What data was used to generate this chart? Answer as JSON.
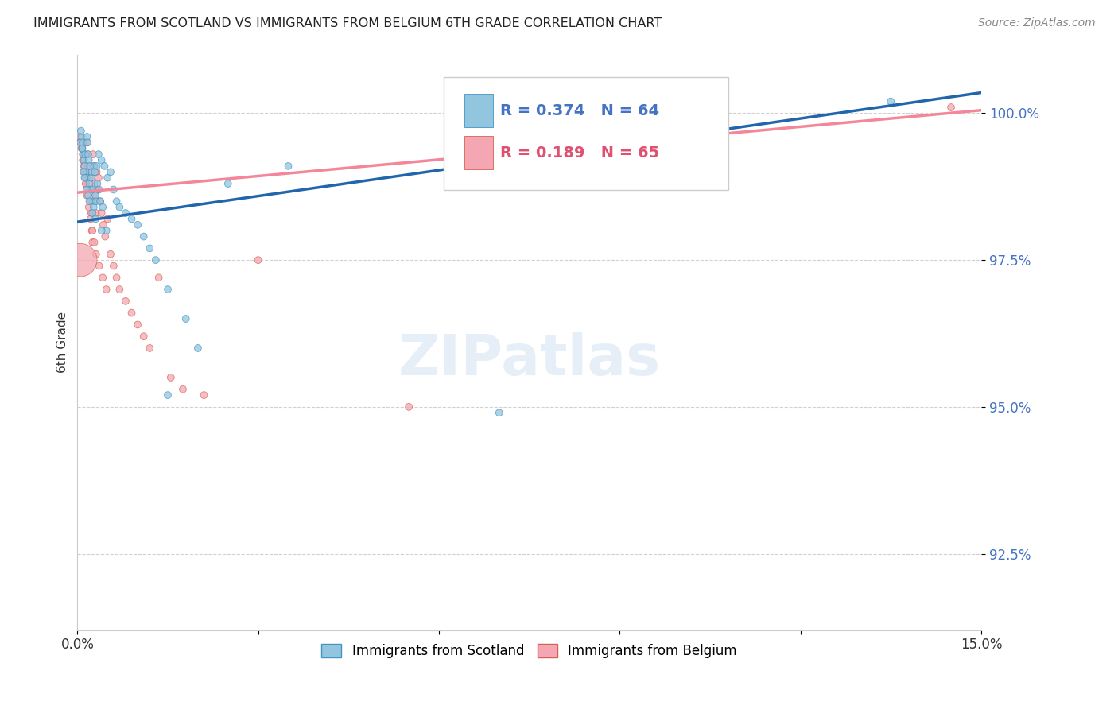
{
  "title": "IMMIGRANTS FROM SCOTLAND VS IMMIGRANTS FROM BELGIUM 6TH GRADE CORRELATION CHART",
  "source": "Source: ZipAtlas.com",
  "ylabel": "6th Grade",
  "yticks": [
    92.5,
    95.0,
    97.5,
    100.0
  ],
  "ytick_labels": [
    "92.5%",
    "95.0%",
    "97.5%",
    "100.0%"
  ],
  "xmin": 0.0,
  "xmax": 15.0,
  "ymin": 91.2,
  "ymax": 101.0,
  "scotland_color": "#92c5de",
  "scotland_edge": "#4393c3",
  "belgium_color": "#f4a7b2",
  "belgium_edge": "#d6604d",
  "scotland_R": 0.374,
  "scotland_N": 64,
  "belgium_R": 0.189,
  "belgium_N": 65,
  "scotland_line_color": "#2166ac",
  "belgium_line_color": "#f4869a",
  "legend_label_scotland": "Immigrants from Scotland",
  "legend_label_belgium": "Immigrants from Belgium",
  "scotland_x": [
    0.05,
    0.07,
    0.08,
    0.09,
    0.1,
    0.11,
    0.12,
    0.13,
    0.14,
    0.15,
    0.16,
    0.17,
    0.18,
    0.19,
    0.2,
    0.21,
    0.22,
    0.23,
    0.24,
    0.25,
    0.26,
    0.27,
    0.28,
    0.29,
    0.3,
    0.31,
    0.32,
    0.33,
    0.35,
    0.36,
    0.38,
    0.4,
    0.42,
    0.45,
    0.48,
    0.5,
    0.55,
    0.6,
    0.65,
    0.7,
    0.8,
    0.9,
    1.0,
    1.1,
    1.2,
    1.3,
    1.5,
    1.8,
    2.0,
    2.5,
    0.06,
    0.08,
    0.1,
    0.12,
    0.15,
    0.18,
    0.2,
    0.25,
    0.3,
    0.4,
    1.5,
    3.5,
    7.0,
    13.5
  ],
  "scotland_y": [
    99.5,
    99.6,
    99.4,
    99.5,
    99.3,
    99.2,
    99.1,
    99.3,
    99.0,
    98.9,
    99.6,
    99.5,
    99.3,
    99.2,
    98.8,
    99.1,
    98.7,
    98.9,
    99.0,
    98.7,
    98.5,
    98.4,
    99.1,
    99.0,
    98.6,
    98.5,
    99.1,
    98.8,
    99.3,
    98.7,
    98.5,
    99.2,
    98.4,
    99.1,
    98.0,
    98.9,
    99.0,
    98.7,
    98.5,
    98.4,
    98.3,
    98.2,
    98.1,
    97.9,
    97.7,
    97.5,
    97.0,
    96.5,
    96.0,
    98.8,
    99.7,
    99.4,
    99.0,
    98.9,
    98.7,
    98.6,
    98.5,
    98.3,
    98.2,
    98.0,
    95.2,
    99.1,
    94.9,
    100.2
  ],
  "scotland_size": [
    40,
    40,
    40,
    40,
    40,
    40,
    40,
    40,
    40,
    40,
    40,
    40,
    40,
    40,
    40,
    40,
    40,
    40,
    40,
    40,
    40,
    40,
    40,
    40,
    40,
    40,
    40,
    40,
    40,
    40,
    40,
    40,
    40,
    40,
    40,
    40,
    40,
    40,
    40,
    40,
    40,
    40,
    40,
    40,
    40,
    40,
    40,
    40,
    40,
    40,
    40,
    40,
    40,
    40,
    40,
    40,
    40,
    40,
    40,
    40,
    40,
    40,
    40,
    40
  ],
  "belgium_x": [
    0.04,
    0.06,
    0.08,
    0.09,
    0.1,
    0.11,
    0.12,
    0.13,
    0.14,
    0.15,
    0.16,
    0.17,
    0.18,
    0.19,
    0.2,
    0.21,
    0.22,
    0.23,
    0.24,
    0.25,
    0.26,
    0.27,
    0.28,
    0.29,
    0.3,
    0.31,
    0.32,
    0.33,
    0.35,
    0.38,
    0.4,
    0.43,
    0.46,
    0.5,
    0.55,
    0.6,
    0.65,
    0.7,
    0.8,
    0.9,
    1.0,
    1.1,
    1.2,
    1.35,
    1.55,
    1.75,
    2.1,
    0.07,
    0.09,
    0.11,
    0.14,
    0.16,
    0.19,
    0.22,
    0.25,
    0.28,
    0.31,
    0.36,
    0.42,
    0.48,
    0.05,
    3.0,
    5.5,
    14.5,
    0.05
  ],
  "belgium_y": [
    99.6,
    99.5,
    99.4,
    99.3,
    99.2,
    99.1,
    99.0,
    98.9,
    98.8,
    98.7,
    99.5,
    99.3,
    99.1,
    99.0,
    98.9,
    98.7,
    98.5,
    98.3,
    98.0,
    97.8,
    99.3,
    99.1,
    98.8,
    98.5,
    98.6,
    98.3,
    99.0,
    98.7,
    98.9,
    98.5,
    98.3,
    98.1,
    97.9,
    98.2,
    97.6,
    97.4,
    97.2,
    97.0,
    96.8,
    96.6,
    96.4,
    96.2,
    96.0,
    97.2,
    95.5,
    95.3,
    95.2,
    99.4,
    99.2,
    99.0,
    98.8,
    98.6,
    98.4,
    98.2,
    98.0,
    97.8,
    97.6,
    97.4,
    97.2,
    97.0,
    99.5,
    97.5,
    95.0,
    100.1,
    97.5
  ],
  "belgium_size": [
    40,
    40,
    40,
    40,
    40,
    40,
    40,
    40,
    40,
    40,
    40,
    40,
    40,
    40,
    40,
    40,
    40,
    40,
    40,
    40,
    40,
    40,
    40,
    40,
    40,
    40,
    40,
    40,
    40,
    40,
    40,
    40,
    40,
    40,
    40,
    40,
    40,
    40,
    40,
    40,
    40,
    40,
    40,
    40,
    40,
    40,
    40,
    40,
    40,
    40,
    40,
    40,
    40,
    40,
    40,
    40,
    40,
    40,
    40,
    40,
    40,
    40,
    40,
    40,
    900
  ],
  "scot_line_x0": 0.0,
  "scot_line_y0": 98.15,
  "scot_line_x1": 15.0,
  "scot_line_y1": 100.35,
  "belg_line_x0": 0.0,
  "belg_line_y0": 98.65,
  "belg_line_x1": 15.0,
  "belg_line_y1": 100.05
}
